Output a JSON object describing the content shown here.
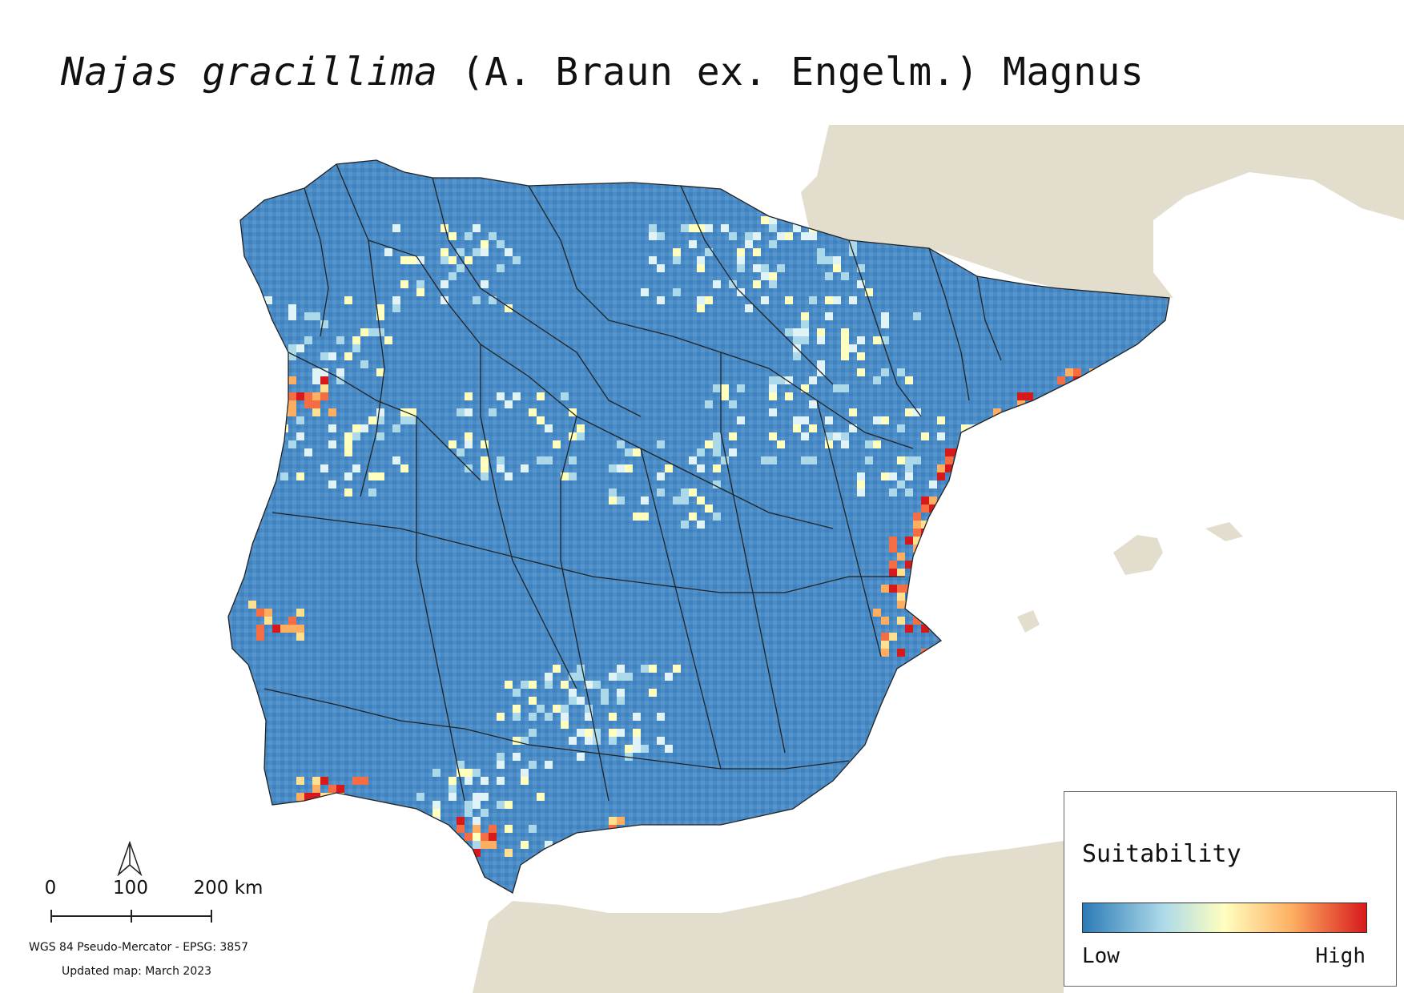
{
  "title": {
    "species": "Najas gracillima",
    "authority": "(A. Braun ex. Engelm.) Magnus"
  },
  "legend": {
    "title": "Suitability",
    "low_label": "Low",
    "high_label": "High",
    "ramp_colors": [
      "#2c7bb6",
      "#abd9e9",
      "#ffffbf",
      "#fdae61",
      "#d7191c"
    ]
  },
  "scale_bar": {
    "labels": [
      "0",
      "100",
      "200 km"
    ]
  },
  "crs_text": "WGS 84 Pseudo-Mercator  - EPSG: 3857",
  "updated_text": "Updated map: March 2023",
  "north_arrow_icon": "north-arrow-icon",
  "colors": {
    "land_background": "#e3ddcd",
    "sea": "#ffffff",
    "boundary": "#222222"
  }
}
